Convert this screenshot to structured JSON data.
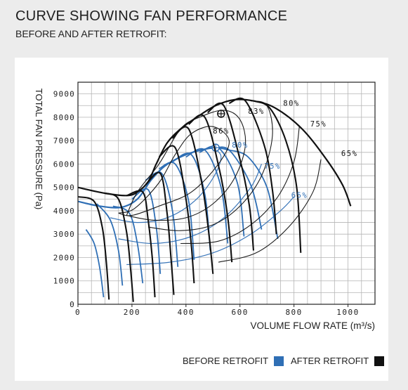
{
  "header": {
    "title": "CURVE SHOWING FAN PERFORMANCE",
    "subtitle": "BEFORE AND AFTER RETROFIT:"
  },
  "legend": {
    "before_label": "BEFORE RETROFIT",
    "after_label": "AFTER RETROFIT",
    "before_color": "#2f6fb5",
    "after_color": "#111111"
  },
  "chart_data": {
    "type": "line",
    "xlabel": "VOLUME FLOW RATE (m³/s)",
    "ylabel": "TOTAL FAN PRESSURE (Pa)",
    "xlim": [
      0,
      1100
    ],
    "ylim": [
      0,
      9500
    ],
    "x_ticks": [
      "0",
      "200",
      "400",
      "600",
      "800",
      "1000"
    ],
    "x_tick_values": [
      0,
      200,
      400,
      600,
      800,
      1000
    ],
    "y_ticks": [
      "0",
      "1000",
      "2000",
      "3000",
      "4000",
      "5000",
      "6000",
      "7000",
      "8000",
      "9000"
    ],
    "y_tick_values": [
      0,
      1000,
      2000,
      3000,
      4000,
      5000,
      6000,
      7000,
      8000,
      9000
    ],
    "grid": true,
    "legend_position": "bottom-right",
    "series": [
      {
        "name": "AFTER RETROFIT",
        "color": "#111111",
        "envelope": [
          [
            0,
            5000
          ],
          [
            100,
            4750
          ],
          [
            180,
            4650
          ],
          [
            220,
            4800
          ],
          [
            260,
            5250
          ],
          [
            290,
            6000
          ],
          [
            330,
            6900
          ],
          [
            380,
            7500
          ],
          [
            440,
            8000
          ],
          [
            510,
            8500
          ],
          [
            580,
            8750
          ],
          [
            650,
            8700
          ],
          [
            730,
            8400
          ],
          [
            830,
            7500
          ],
          [
            920,
            6200
          ],
          [
            980,
            5100
          ],
          [
            1010,
            4200
          ]
        ],
        "speed_curves": [
          [
            [
              0,
              4600
            ],
            [
              60,
              4400
            ],
            [
              90,
              3300
            ],
            [
              105,
              1800
            ],
            [
              115,
              200
            ]
          ],
          [
            [
              100,
              4750
            ],
            [
              150,
              4500
            ],
            [
              180,
              3100
            ],
            [
              195,
              1500
            ],
            [
              205,
              100
            ]
          ],
          [
            [
              180,
              4650
            ],
            [
              240,
              4800
            ],
            [
              260,
              3600
            ],
            [
              275,
              2000
            ],
            [
              285,
              300
            ]
          ],
          [
            [
              250,
              5100
            ],
            [
              305,
              5600
            ],
            [
              330,
              3900
            ],
            [
              345,
              1900
            ],
            [
              355,
              400
            ]
          ],
          [
            [
              300,
              6300
            ],
            [
              360,
              6700
            ],
            [
              400,
              4500
            ],
            [
              420,
              2500
            ],
            [
              430,
              900
            ]
          ],
          [
            [
              350,
              7100
            ],
            [
              410,
              7500
            ],
            [
              460,
              5100
            ],
            [
              485,
              3000
            ],
            [
              500,
              1300
            ]
          ],
          [
            [
              410,
              7700
            ],
            [
              470,
              8000
            ],
            [
              525,
              5700
            ],
            [
              555,
              3700
            ],
            [
              570,
              1800
            ]
          ],
          [
            [
              480,
              8200
            ],
            [
              540,
              8500
            ],
            [
              600,
              6200
            ],
            [
              635,
              4200
            ],
            [
              650,
              2300
            ]
          ],
          [
            [
              560,
              8600
            ],
            [
              620,
              8700
            ],
            [
              690,
              6800
            ],
            [
              720,
              4900
            ],
            [
              735,
              3000
            ]
          ],
          [
            [
              650,
              8700
            ],
            [
              710,
              8400
            ],
            [
              770,
              7000
            ],
            [
              810,
              5000
            ],
            [
              825,
              2200
            ]
          ]
        ],
        "efficiency_loops": [
          {
            "label": "86%",
            "points": [
              [
                150,
                3900
              ],
              [
                210,
                4100
              ],
              [
                300,
                5200
              ],
              [
                360,
                6400
              ],
              [
                420,
                7300
              ],
              [
                500,
                7600
              ],
              [
                560,
                7000
              ],
              [
                520,
                6000
              ],
              [
                420,
                4800
              ],
              [
                300,
                4200
              ],
              [
                200,
                3800
              ],
              [
                150,
                3900
              ]
            ]
          },
          {
            "label": "83%",
            "points": [
              [
                180,
                3800
              ],
              [
                280,
                3600
              ],
              [
                400,
                3700
              ],
              [
                500,
                4300
              ],
              [
                580,
                5400
              ],
              [
                620,
                6800
              ],
              [
                600,
                7900
              ],
              [
                540,
                8300
              ],
              [
                450,
                8000
              ],
              [
                380,
                7500
              ],
              [
                300,
                6000
              ],
              [
                220,
                4800
              ],
              [
                180,
                3800
              ]
            ]
          },
          {
            "label": "80%",
            "points": [
              [
                260,
                3300
              ],
              [
                380,
                3150
              ],
              [
                500,
                3400
              ],
              [
                600,
                4200
              ],
              [
                680,
                5500
              ],
              [
                720,
                7200
              ],
              [
                700,
                8500
              ],
              [
                640,
                8700
              ]
            ]
          },
          {
            "label": "75%",
            "points": [
              [
                380,
                2600
              ],
              [
                520,
                2700
              ],
              [
                640,
                3400
              ],
              [
                740,
                4600
              ],
              [
                800,
                6100
              ],
              [
                820,
                7600
              ]
            ]
          },
          {
            "label": "65%",
            "points": [
              [
                520,
                1800
              ],
              [
                660,
                2200
              ],
              [
                780,
                3300
              ],
              [
                870,
                4800
              ],
              [
                900,
                6200
              ]
            ]
          }
        ],
        "operating_point": {
          "x": 530,
          "y": 8150
        },
        "efficiency_labels": [
          "86%",
          "83%",
          "80%",
          "75%",
          "65%"
        ]
      },
      {
        "name": "BEFORE RETROFIT",
        "color": "#2f6fb5",
        "envelope": [
          [
            0,
            4400
          ],
          [
            80,
            4200
          ],
          [
            160,
            4150
          ],
          [
            220,
            4500
          ],
          [
            270,
            5300
          ],
          [
            320,
            5900
          ],
          [
            380,
            6300
          ],
          [
            440,
            6550
          ],
          [
            510,
            6700
          ],
          [
            560,
            6600
          ]
        ],
        "speed_curves": [
          [
            [
              30,
              3200
            ],
            [
              60,
              2600
            ],
            [
              80,
              1600
            ],
            [
              95,
              300
            ]
          ],
          [
            [
              70,
              4300
            ],
            [
              120,
              3600
            ],
            [
              150,
              2300
            ],
            [
              165,
              800
            ]
          ],
          [
            [
              130,
              4200
            ],
            [
              190,
              3900
            ],
            [
              220,
              2600
            ],
            [
              240,
              900
            ]
          ],
          [
            [
              200,
              4500
            ],
            [
              260,
              4900
            ],
            [
              290,
              3300
            ],
            [
              305,
              1300
            ]
          ],
          [
            [
              250,
              5300
            ],
            [
              310,
              5600
            ],
            [
              350,
              4000
            ],
            [
              370,
              1600
            ]
          ],
          [
            [
              300,
              5800
            ],
            [
              360,
              6000
            ],
            [
              410,
              4400
            ],
            [
              430,
              1900
            ]
          ],
          [
            [
              350,
              6100
            ],
            [
              420,
              6400
            ],
            [
              470,
              4700
            ],
            [
              490,
              2300
            ]
          ],
          [
            [
              400,
              6300
            ],
            [
              470,
              6600
            ],
            [
              530,
              5000
            ],
            [
              555,
              2600
            ]
          ],
          [
            [
              450,
              6500
            ],
            [
              520,
              6700
            ],
            [
              590,
              5200
            ],
            [
              615,
              2900
            ]
          ],
          [
            [
              500,
              6650
            ],
            [
              560,
              6600
            ],
            [
              640,
              5100
            ],
            [
              680,
              3200
            ]
          ],
          [
            [
              560,
              6600
            ],
            [
              630,
              6300
            ],
            [
              700,
              5000
            ],
            [
              740,
              2800
            ]
          ]
        ],
        "efficiency_loops": [
          {
            "label": "80%",
            "points": [
              [
                120,
                3700
              ],
              [
                220,
                3500
              ],
              [
                330,
                3700
              ],
              [
                430,
                4400
              ],
              [
                500,
                5400
              ],
              [
                530,
                6300
              ],
              [
                500,
                6700
              ]
            ]
          },
          {
            "label": "75%",
            "points": [
              [
                150,
                2800
              ],
              [
                280,
                2600
              ],
              [
                420,
                2900
              ],
              [
                540,
                3700
              ],
              [
                640,
                5000
              ],
              [
                680,
                6000
              ]
            ]
          },
          {
            "label": "65%",
            "points": [
              [
                180,
                1700
              ],
              [
                340,
                1800
              ],
              [
                500,
                2200
              ],
              [
                640,
                3000
              ],
              [
                750,
                4000
              ],
              [
                800,
                4600
              ]
            ]
          }
        ],
        "operating_point": {
          "x": 510,
          "y": 6700
        },
        "efficiency_labels": [
          "80%",
          "75%",
          "65%"
        ]
      }
    ],
    "annotations": [
      {
        "text": "80%",
        "x": 760,
        "y": 8500
      },
      {
        "text": "83%",
        "x": 630,
        "y": 8150
      },
      {
        "text": "75%",
        "x": 860,
        "y": 7600
      },
      {
        "text": "86%",
        "x": 500,
        "y": 7300
      },
      {
        "text": "65%",
        "x": 975,
        "y": 6350
      },
      {
        "text": "80%",
        "x": 570,
        "y": 6700
      },
      {
        "text": "75%",
        "x": 690,
        "y": 5800
      },
      {
        "text": "65%",
        "x": 790,
        "y": 4550
      }
    ],
    "annotation_colors": [
      "#111111",
      "#111111",
      "#111111",
      "#111111",
      "#111111",
      "#2f6fb5",
      "#2f6fb5",
      "#2f6fb5"
    ]
  }
}
